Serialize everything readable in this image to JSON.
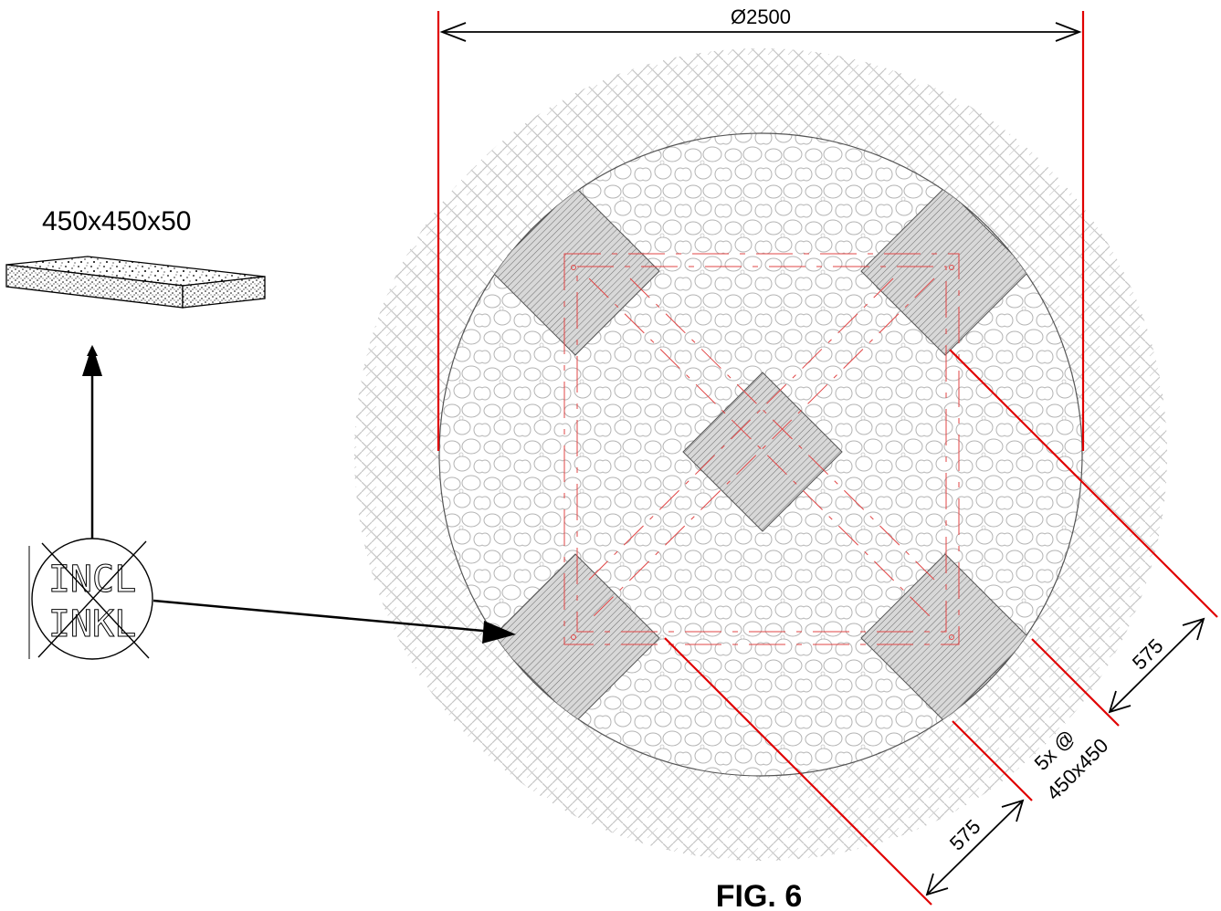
{
  "product": {
    "size_label": "450x450x50"
  },
  "stamp": {
    "line1": "INCL",
    "line2": "INKL"
  },
  "dimensions": {
    "diameter": "Ø2500",
    "spacing_a": "575",
    "spacing_b": "575",
    "tiles_line1": "5x @",
    "tiles_line2": "450x450"
  },
  "figure": {
    "caption": "FIG. 6"
  },
  "colors": {
    "dimension_line": "#e00000",
    "outline": "#000000",
    "hatch": "#b8b8b8",
    "tile_hatch": "#6e6e6e"
  }
}
